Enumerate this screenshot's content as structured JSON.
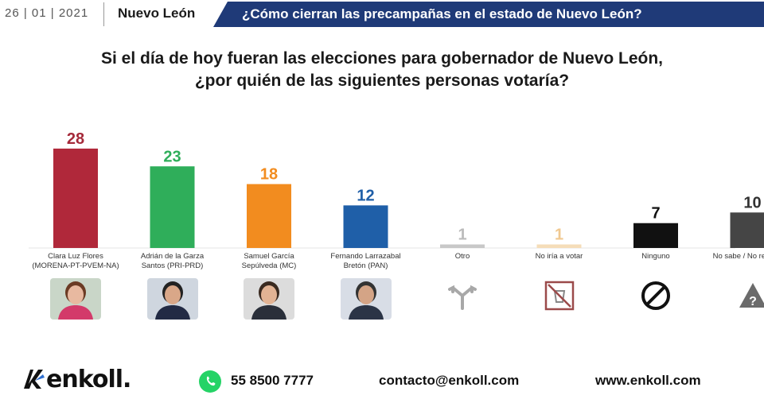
{
  "header": {
    "date": "26 | 01 | 2021",
    "state": "Nuevo León",
    "question_banner": "¿Cómo cierran las precampañas en el estado de Nuevo León?"
  },
  "chart_data": {
    "type": "bar",
    "title": "Si el día de hoy fueran las elecciones para gobernador de Nuevo León, ¿por quién de las siguientes personas votaría?",
    "title_lines": [
      "Si el día de hoy fueran las elecciones para gobernador de Nuevo León,",
      "¿por quién de las siguientes personas votaría?"
    ],
    "categories": [
      [
        "Clara Luz Flores",
        "(MORENA-PT-PVEM-NA)"
      ],
      [
        "Adrián de la Garza",
        "Santos (PRI-PRD)"
      ],
      [
        "Samuel García",
        "Sepúlveda (MC)"
      ],
      [
        "Fernando Larrazabal",
        "Bretón (PAN)"
      ],
      [
        "Otro"
      ],
      [
        "No iría a votar"
      ],
      [
        "Ninguno"
      ],
      [
        "No sabe / No respondió"
      ]
    ],
    "values": [
      28,
      23,
      18,
      12,
      1,
      1,
      7,
      10
    ],
    "colors": [
      "#b0283a",
      "#2fae5a",
      "#f28c1f",
      "#1f5fa8",
      "#c8c8c8",
      "#f5ddb8",
      "#111111",
      "#454545"
    ],
    "label_colors": [
      "#a52a3a",
      "#2fae5a",
      "#f28c1f",
      "#1f5fa8",
      "#bbbbbb",
      "#f0c890",
      "#111111",
      "#333333"
    ],
    "ylim": [
      0,
      30
    ],
    "grid": false,
    "legend": "none"
  },
  "icons": [
    "photo-clara-luz",
    "photo-adrian-garza",
    "photo-samuel-garcia",
    "photo-fernando-larrazabal",
    "split-arrows-icon",
    "no-vote-icon",
    "prohibited-icon",
    "question-warning-icon"
  ],
  "footer": {
    "brand": "enkoll.",
    "phone": "55 8500 7777",
    "email": "contacto@enkoll.com",
    "website": "www.enkoll.com"
  }
}
